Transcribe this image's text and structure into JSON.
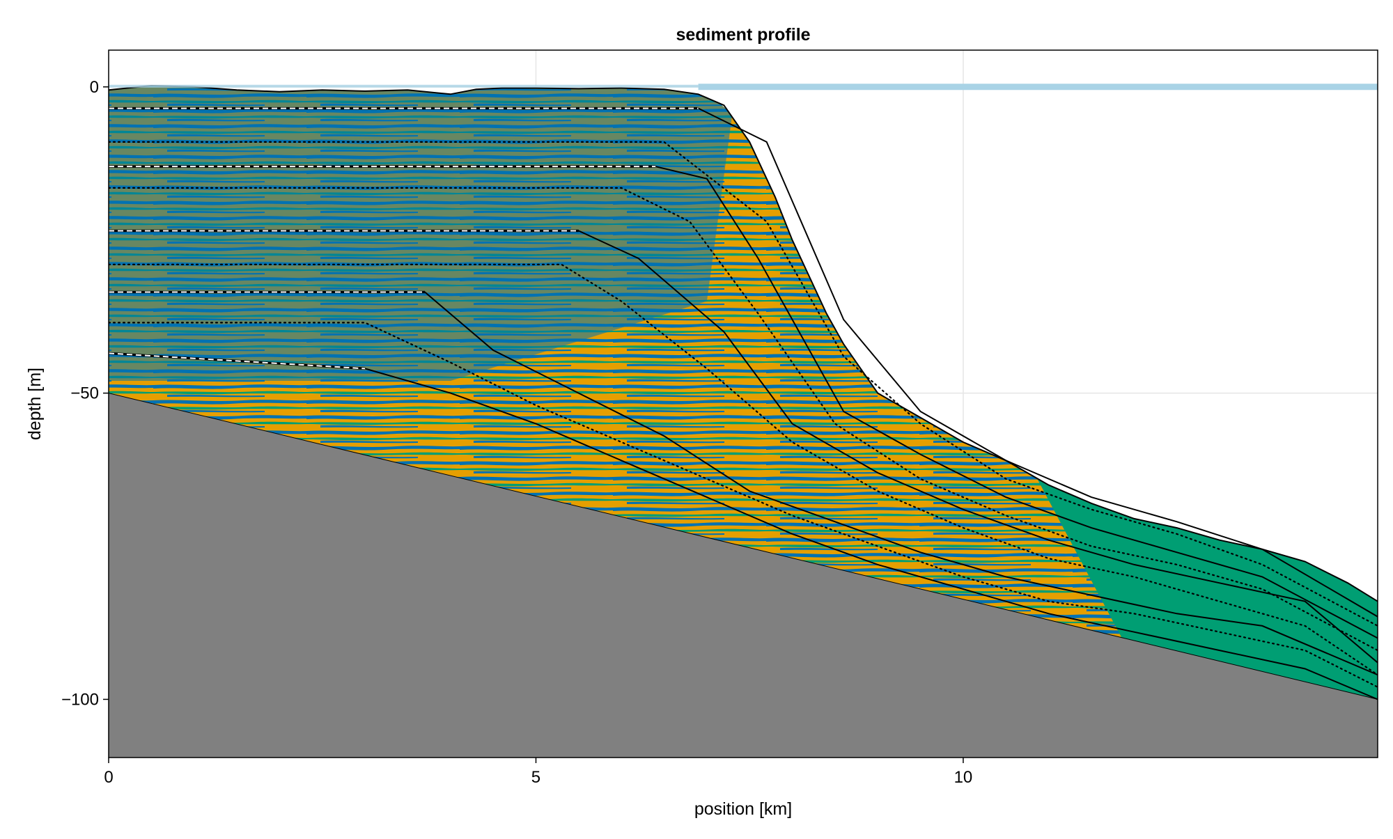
{
  "chart_data": {
    "type": "area",
    "title": "sediment profile",
    "xlabel": "position [km]",
    "ylabel": "depth [m]",
    "xlim": [
      0,
      14.85
    ],
    "ylim": [
      -109.5,
      6
    ],
    "grid": true,
    "x_ticks": [
      {
        "value": 0,
        "label": "0"
      },
      {
        "value": 5,
        "label": "5"
      },
      {
        "value": 10,
        "label": "10"
      }
    ],
    "y_ticks": [
      {
        "value": 0,
        "label": "0"
      },
      {
        "value": -50,
        "label": "−50"
      },
      {
        "value": -100,
        "label": "−100"
      }
    ],
    "sea_level": 0,
    "colors": {
      "sea": "#a9d3e6",
      "basement": "#808080",
      "facies_a": "#0072b2",
      "facies_b": "#e69f00",
      "facies_c": "#009e73",
      "grid": "#e5e5e5"
    },
    "basement_line": {
      "x": [
        0,
        14.85
      ],
      "y": [
        -50,
        -100
      ]
    },
    "surface": {
      "x": [
        0,
        0.5,
        1.0,
        1.5,
        2.0,
        2.5,
        3.0,
        3.5,
        4.0,
        4.3,
        4.6,
        5.0,
        5.5,
        6.0,
        6.5,
        6.9,
        7.2,
        7.5,
        7.8,
        8.0,
        8.2,
        8.4,
        8.6,
        8.8,
        9.0,
        9.5,
        10.0,
        10.5,
        11.0,
        11.5,
        12.0,
        12.5,
        13.0,
        13.5,
        14.0,
        14.5,
        14.85
      ],
      "y": [
        -0.5,
        0.2,
        0.0,
        -0.5,
        -0.8,
        -0.5,
        -0.7,
        -0.5,
        -1.2,
        -0.4,
        -0.2,
        -0.2,
        -0.3,
        -0.2,
        -0.4,
        -1.2,
        -3.0,
        -9.0,
        -18.0,
        -25.0,
        -31.0,
        -37.0,
        -42.0,
        -46.0,
        -50.0,
        -54.0,
        -58.0,
        -61.0,
        -65.0,
        -68.0,
        -70.5,
        -72.0,
        -74.0,
        -75.5,
        -77.5,
        -81.0,
        -84.0
      ]
    },
    "horizons": [
      {
        "style": "solid",
        "x": [
          0,
          6.9,
          7.7,
          8.6,
          9.5,
          10.5,
          11.5,
          12.5,
          13.5,
          14.85
        ],
        "y": [
          -3.5,
          -3.5,
          -9.0,
          -38.0,
          -53.0,
          -61.0,
          -67.0,
          -71.0,
          -75.5,
          -86.5
        ]
      },
      {
        "style": "dotted",
        "x": [
          0,
          6.5,
          7.7,
          8.6,
          9.5,
          10.5,
          11.5,
          12.5,
          13.5,
          14.85
        ],
        "y": [
          -9.0,
          -9.0,
          -22.0,
          -44.0,
          -55.0,
          -64.0,
          -69.0,
          -73.0,
          -78.0,
          -88.0
        ]
      },
      {
        "style": "solid",
        "x": [
          0,
          6.4,
          7.0,
          7.6,
          8.6,
          9.5,
          10.5,
          11.5,
          12.5,
          13.5,
          14.85
        ],
        "y": [
          -13.0,
          -13.0,
          -15.0,
          -28.0,
          -53.0,
          -60.0,
          -67.0,
          -72.0,
          -76.0,
          -80.0,
          -90.0
        ]
      },
      {
        "style": "dotted",
        "x": [
          0,
          6.0,
          6.8,
          7.6,
          8.5,
          9.5,
          10.5,
          11.5,
          12.5,
          13.5,
          14.85
        ],
        "y": [
          -16.5,
          -16.5,
          -22.0,
          -37.0,
          -55.0,
          -64.0,
          -70.0,
          -75.0,
          -78.0,
          -82.0,
          -92.0
        ]
      },
      {
        "style": "solid",
        "x": [
          0,
          5.5,
          6.2,
          7.2,
          8.0,
          9.0,
          10.0,
          11.0,
          12.0,
          13.0,
          14.0,
          14.85
        ],
        "y": [
          -23.5,
          -23.5,
          -28.0,
          -40.0,
          -55.0,
          -63.0,
          -69.0,
          -74.0,
          -78.0,
          -81.0,
          -84.0,
          -94.0
        ]
      },
      {
        "style": "dotted",
        "x": [
          0,
          5.3,
          6.0,
          7.0,
          8.0,
          9.0,
          10.0,
          11.0,
          12.0,
          13.0,
          14.0,
          14.85
        ],
        "y": [
          -29.0,
          -29.0,
          -35.0,
          -46.0,
          -58.0,
          -66.0,
          -72.0,
          -77.0,
          -80.0,
          -84.0,
          -88.0,
          -96.0
        ]
      },
      {
        "style": "solid",
        "x": [
          0,
          3.7,
          4.5,
          5.5,
          6.5,
          7.5,
          8.5,
          9.5,
          10.5,
          11.5,
          12.5,
          13.5,
          14.85
        ],
        "y": [
          -33.5,
          -33.5,
          -43.0,
          -50.0,
          -57.0,
          -66.0,
          -71.0,
          -76.0,
          -80.0,
          -83.0,
          -86.0,
          -88.0,
          -96.0
        ]
      },
      {
        "style": "dotted",
        "x": [
          0,
          3.0,
          4.0,
          5.0,
          6.0,
          7.0,
          8.0,
          9.0,
          10.0,
          11.0,
          12.0,
          13.0,
          14.0,
          14.85
        ],
        "y": [
          -38.5,
          -38.5,
          -45.0,
          -52.0,
          -58.0,
          -64.0,
          -70.0,
          -75.0,
          -80.0,
          -84.0,
          -86.0,
          -89.0,
          -92.0,
          -98.0
        ]
      },
      {
        "style": "solid",
        "x": [
          0,
          3.0,
          4.0,
          5.0,
          6.0,
          7.0,
          8.0,
          9.0,
          10.0,
          11.0,
          12.0,
          13.0,
          14.0,
          14.85
        ],
        "y": [
          -43.5,
          -46.0,
          -50.0,
          -55.0,
          -61.0,
          -67.0,
          -73.0,
          -78.0,
          -82.0,
          -86.0,
          -89.0,
          -92.0,
          -95.0,
          -100.0
        ]
      }
    ],
    "dashed_shelf_lines": [
      {
        "x": [
          0,
          6.9
        ],
        "y": [
          -3.5,
          -3.5
        ]
      },
      {
        "x": [
          0,
          6.4
        ],
        "y": [
          -13.0,
          -13.0
        ]
      },
      {
        "x": [
          0,
          5.5
        ],
        "y": [
          -23.5,
          -23.5
        ]
      },
      {
        "x": [
          0,
          3.7
        ],
        "y": [
          -33.5,
          -33.5
        ]
      },
      {
        "x": [
          0,
          3.0
        ],
        "y": [
          -43.5,
          -46.0
        ]
      }
    ]
  }
}
